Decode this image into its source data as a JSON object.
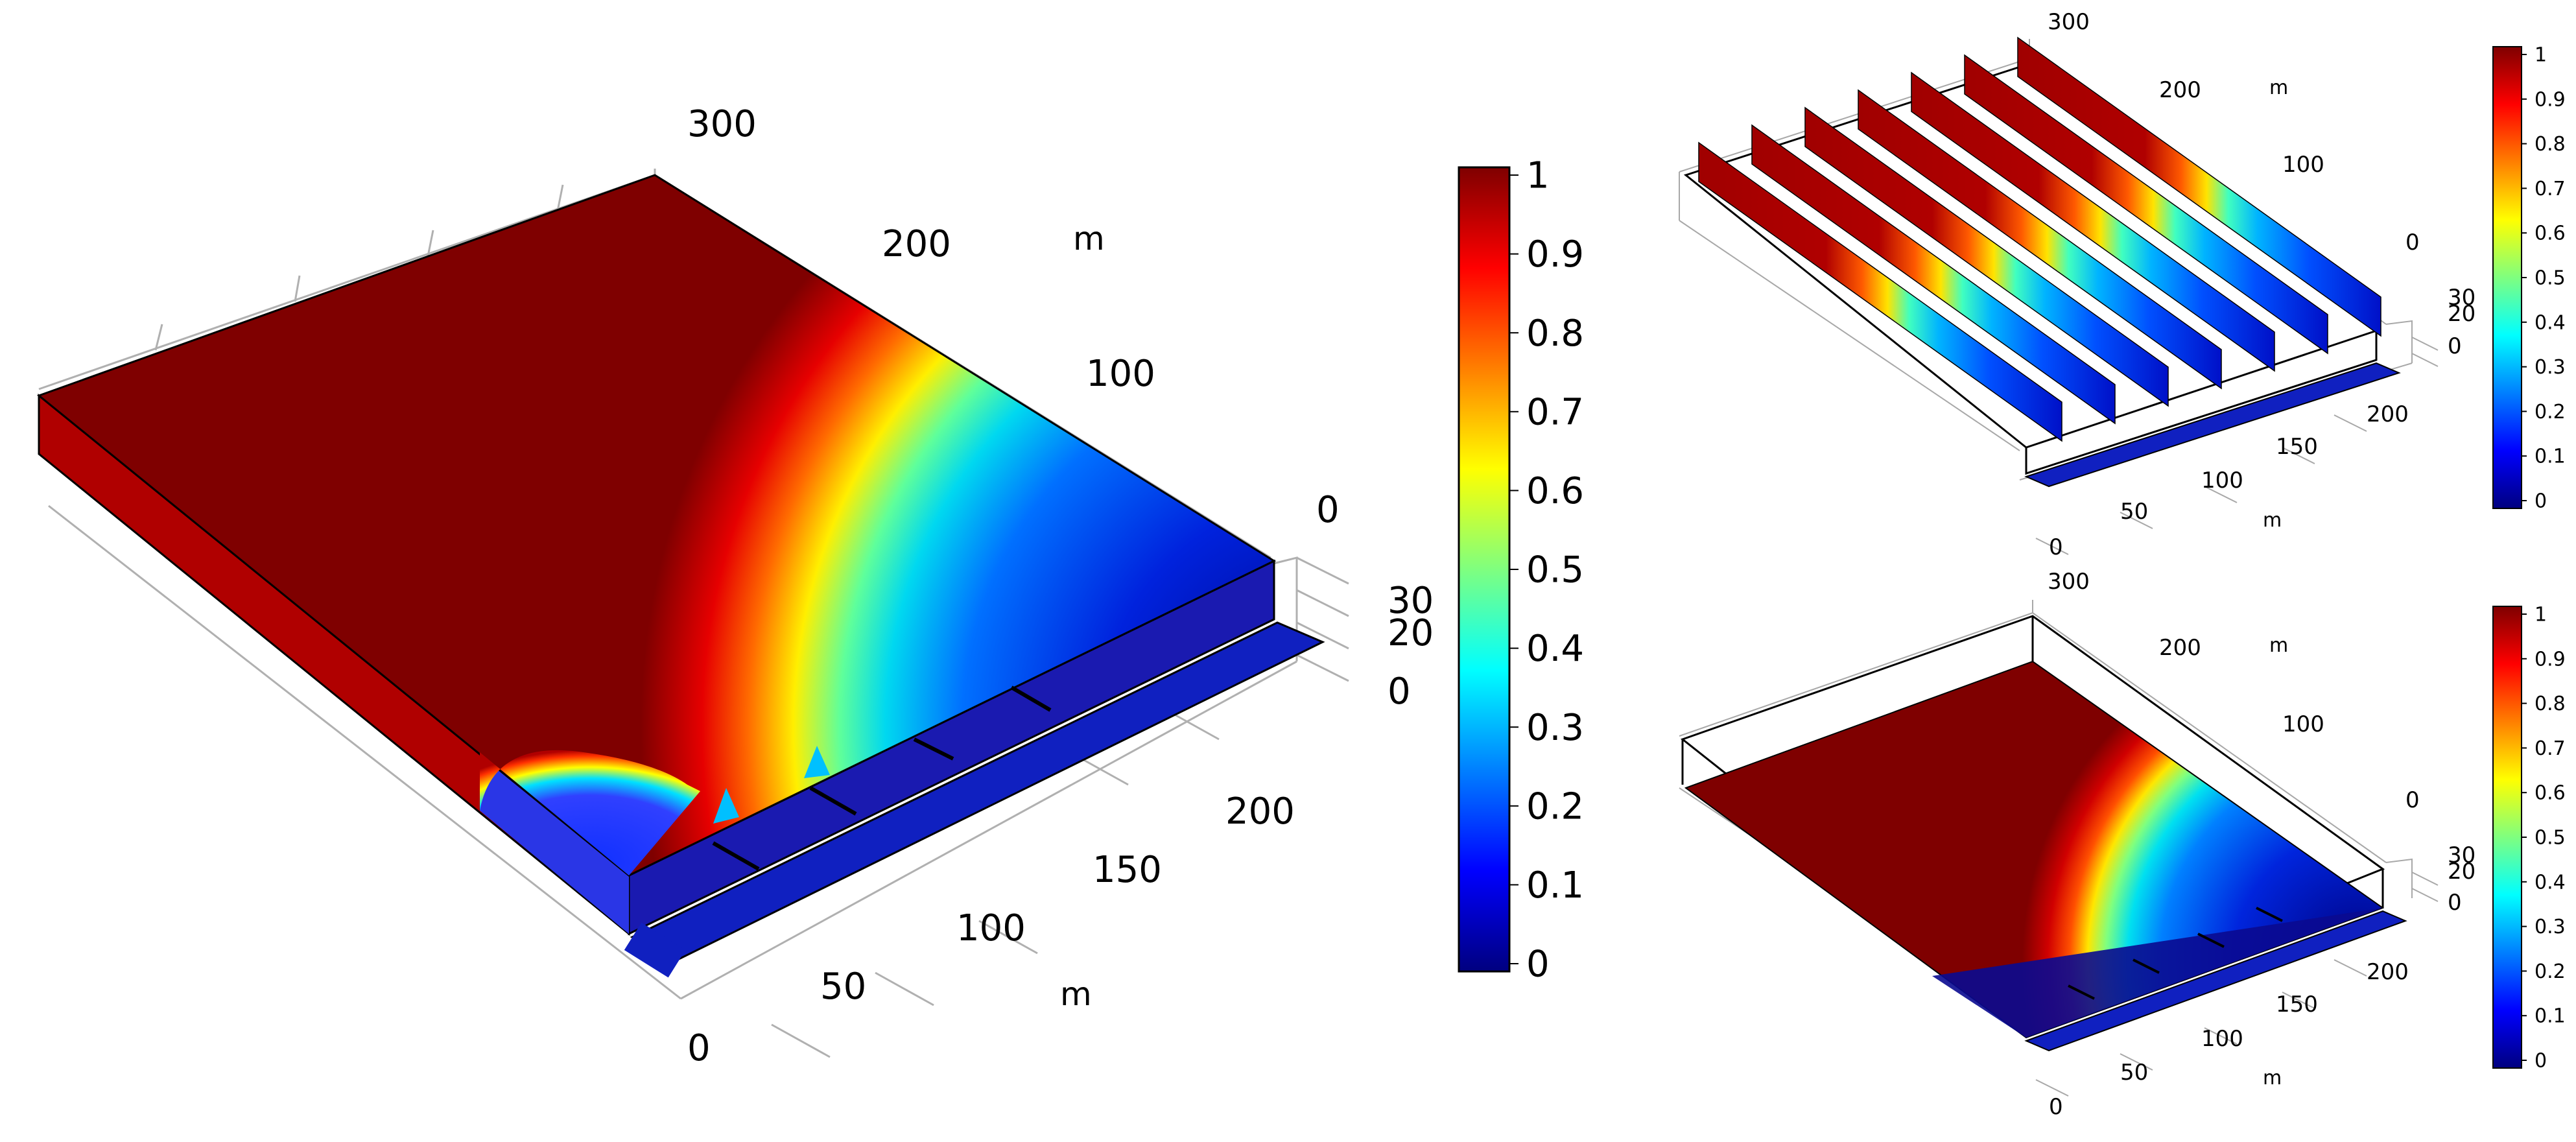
{
  "main_plot": {
    "top_axis_ticks": [
      "300",
      "200",
      "100",
      "0"
    ],
    "top_axis_unit": "m",
    "vertical_axis_ticks": [
      "30",
      "20",
      "0"
    ],
    "bottom_axis_ticks": [
      "200",
      "150",
      "100",
      "50",
      "0"
    ],
    "bottom_axis_unit": "m",
    "colorbar_ticks": [
      "1",
      "0.9",
      "0.8",
      "0.7",
      "0.6",
      "0.5",
      "0.4",
      "0.3",
      "0.2",
      "0.1",
      "0"
    ]
  },
  "slice_plot": {
    "top_axis_ticks": [
      "300",
      "200",
      "100",
      "0"
    ],
    "top_axis_unit": "m",
    "vertical_axis_ticks": [
      "30",
      "20",
      "0"
    ],
    "bottom_axis_ticks": [
      "200",
      "150",
      "100",
      "50",
      "0"
    ],
    "bottom_axis_unit": "m",
    "colorbar_ticks": [
      "1",
      "0.9",
      "0.8",
      "0.7",
      "0.6",
      "0.5",
      "0.4",
      "0.3",
      "0.2",
      "0.1",
      "0"
    ]
  },
  "surface_plot": {
    "top_axis_ticks": [
      "300",
      "200",
      "100",
      "0"
    ],
    "top_axis_unit": "m",
    "vertical_axis_ticks": [
      "30",
      "20",
      "0"
    ],
    "bottom_axis_ticks": [
      "200",
      "150",
      "100",
      "50",
      "0"
    ],
    "bottom_axis_unit": "m",
    "colorbar_ticks": [
      "1",
      "0.9",
      "0.8",
      "0.7",
      "0.6",
      "0.5",
      "0.4",
      "0.3",
      "0.2",
      "0.1",
      "0"
    ]
  },
  "colormap": [
    "#00007f",
    "#0000ff",
    "#007fff",
    "#00ffff",
    "#7fff7f",
    "#ffff00",
    "#ff7f00",
    "#ff0000",
    "#7f0000"
  ]
}
